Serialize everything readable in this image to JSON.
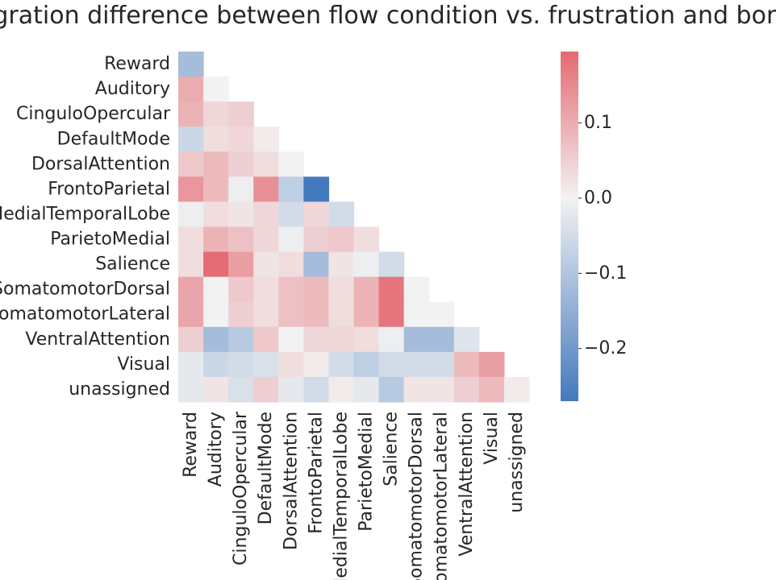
{
  "chart_data": {
    "type": "heatmap",
    "title": "Integration difference between flow condition vs. frustration and boredom",
    "mask": "upper-triangle-excluding-diagonal",
    "rows": [
      "Reward",
      "Auditory",
      "CinguloOpercular",
      "DefaultMode",
      "DorsalAttention",
      "FrontoParietal",
      "MedialTemporalLobe",
      "ParietoMedial",
      "Salience",
      "SomatomotorDorsal",
      "SomatomotorLateral",
      "VentralAttention",
      "Visual",
      "unassigned"
    ],
    "columns": [
      "Reward",
      "Auditory",
      "CinguloOpercular",
      "DefaultMode",
      "DorsalAttention",
      "FrontoParietal",
      "MedialTemporalLobe",
      "ParietoMedial",
      "Salience",
      "SomatomotorDorsal",
      "SomatomotorLateral",
      "VentralAttention",
      "Visual",
      "unassigned"
    ],
    "values": [
      [
        -0.12
      ],
      [
        0.1,
        0.0
      ],
      [
        0.09,
        0.04,
        0.05
      ],
      [
        -0.06,
        0.03,
        0.04,
        0.01
      ],
      [
        0.06,
        0.08,
        0.05,
        0.03,
        0.0
      ],
      [
        0.13,
        0.08,
        -0.01,
        0.14,
        -0.08,
        -0.27
      ],
      [
        -0.01,
        0.03,
        0.02,
        0.04,
        -0.05,
        0.04,
        -0.05
      ],
      [
        0.03,
        0.09,
        0.07,
        0.04,
        -0.01,
        0.05,
        0.06,
        0.03
      ],
      [
        0.03,
        0.19,
        0.12,
        0.02,
        0.03,
        -0.12,
        0.02,
        -0.01,
        -0.05
      ],
      [
        0.11,
        0.0,
        0.06,
        0.03,
        0.07,
        0.08,
        0.03,
        0.09,
        0.18,
        0.0
      ],
      [
        0.11,
        0.0,
        0.05,
        0.03,
        0.07,
        0.08,
        0.03,
        0.09,
        0.18,
        0.0,
        0.0
      ],
      [
        0.05,
        -0.12,
        -0.09,
        0.06,
        0.0,
        0.04,
        0.04,
        0.03,
        -0.01,
        -0.12,
        -0.12,
        -0.03
      ],
      [
        -0.02,
        -0.06,
        -0.05,
        -0.04,
        0.03,
        0.01,
        -0.05,
        -0.08,
        -0.05,
        -0.05,
        -0.05,
        0.08,
        0.12
      ],
      [
        -0.02,
        0.02,
        -0.04,
        0.05,
        -0.02,
        -0.05,
        0.01,
        -0.02,
        -0.09,
        0.02,
        0.02,
        0.05,
        0.08,
        0.01
      ]
    ],
    "colorbar": {
      "min": -0.27,
      "max": 0.195,
      "ticks": [
        0.1,
        0.0,
        -0.1,
        -0.2
      ],
      "tick_labels": [
        "0.1",
        "0.0",
        "−0.1",
        "−0.2"
      ],
      "colors": {
        "low": "#4479be",
        "mid": "#f2f2f2",
        "high": "#e46a72"
      }
    }
  }
}
